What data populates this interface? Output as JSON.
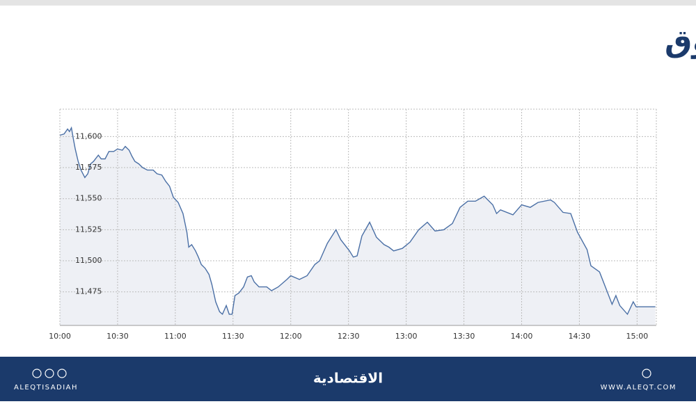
{
  "header": {
    "title": "مؤشر السوق"
  },
  "chart_data": {
    "type": "line",
    "color": "#4a6fa5",
    "fill": "#eef0f5",
    "grid": true,
    "x": [
      600,
      602.2,
      604,
      605,
      606,
      607,
      608,
      609.5,
      611,
      613,
      614.5,
      616,
      617.5,
      620,
      621.5,
      623.5,
      625.5,
      628,
      630,
      632.5,
      634,
      636,
      637.5,
      639,
      641,
      643,
      645.5,
      648.5,
      650.5,
      653,
      655,
      657,
      659,
      661.5,
      664,
      666,
      667,
      668.5,
      670.5,
      672,
      673.5,
      675.5,
      677.5,
      679,
      681,
      683,
      684.5,
      686.5,
      688,
      689.5,
      691,
      693,
      695.5,
      697.5,
      699.5,
      701,
      703.5,
      707.5,
      710,
      713.5,
      718,
      720,
      724.5,
      728.5,
      732.5,
      735,
      739,
      743.5,
      746,
      750.5,
      752.5,
      754.5,
      757,
      761,
      764.5,
      768.5,
      771,
      773.5,
      778,
      782,
      786.5,
      791,
      795,
      799.5,
      804,
      808,
      812,
      816,
      820.5,
      825,
      827,
      829,
      835.5,
      840,
      844.5,
      848.5,
      855,
      857,
      861.5,
      865.5,
      869,
      874,
      876,
      880.5,
      885,
      887,
      889,
      891,
      895,
      898,
      899.5,
      909.5
    ],
    "values": [
      11601,
      11602,
      11606,
      11604,
      11607,
      11598,
      11590,
      11580,
      11573,
      11567,
      11570,
      11578,
      11580,
      11585,
      11582,
      11582,
      11588,
      11588,
      11590,
      11589,
      11592,
      11589,
      11584,
      11580,
      11578,
      11575,
      11573,
      11573,
      11570,
      11569,
      11564,
      11560,
      11551,
      11547,
      11538,
      11523,
      11511,
      11513,
      11508,
      11503,
      11497,
      11494,
      11489,
      11481,
      11467,
      11459,
      11457,
      11464,
      11457,
      11457,
      11472,
      11474,
      11479,
      11487,
      11488,
      11483,
      11479,
      11479,
      11476,
      11479,
      11485,
      11488,
      11485,
      11488,
      11497,
      11500,
      11514,
      11525,
      11517,
      11508,
      11503,
      11504,
      11520,
      11531,
      11519,
      11513,
      11511,
      11508,
      11510,
      11515,
      11525,
      11531,
      11524,
      11525,
      11530,
      11543,
      11548,
      11548,
      11552,
      11545,
      11538,
      11541,
      11537,
      11545,
      11543,
      11547,
      11549,
      11547,
      11539,
      11538,
      11523,
      11509,
      11496,
      11491,
      11473,
      11465,
      11472,
      11464,
      11457,
      11467,
      11463,
      11463
    ],
    "xlim": [
      600,
      910
    ],
    "xticks": [
      {
        "value": 600,
        "label": "10:00"
      },
      {
        "value": 630,
        "label": "10:30"
      },
      {
        "value": 660,
        "label": "11:00"
      },
      {
        "value": 690,
        "label": "11:30"
      },
      {
        "value": 720,
        "label": "12:00"
      },
      {
        "value": 750,
        "label": "12:30"
      },
      {
        "value": 780,
        "label": "13:00"
      },
      {
        "value": 810,
        "label": "13:30"
      },
      {
        "value": 840,
        "label": "14:00"
      },
      {
        "value": 870,
        "label": "14:30"
      },
      {
        "value": 900,
        "label": "15:00"
      }
    ],
    "ylim": [
      11448,
      11622
    ],
    "yticks": [
      {
        "value": 11475,
        "label": "11,475"
      },
      {
        "value": 11500,
        "label": "11,500"
      },
      {
        "value": 11525,
        "label": "11,525"
      },
      {
        "value": 11550,
        "label": "11,550"
      },
      {
        "value": 11575,
        "label": "11,575"
      },
      {
        "value": 11600,
        "label": "11,600"
      }
    ]
  },
  "footer": {
    "social_handle": "ALEQTISADIAH",
    "logo": "الاقتصادية",
    "website": "WWW.ALEQT.COM"
  }
}
